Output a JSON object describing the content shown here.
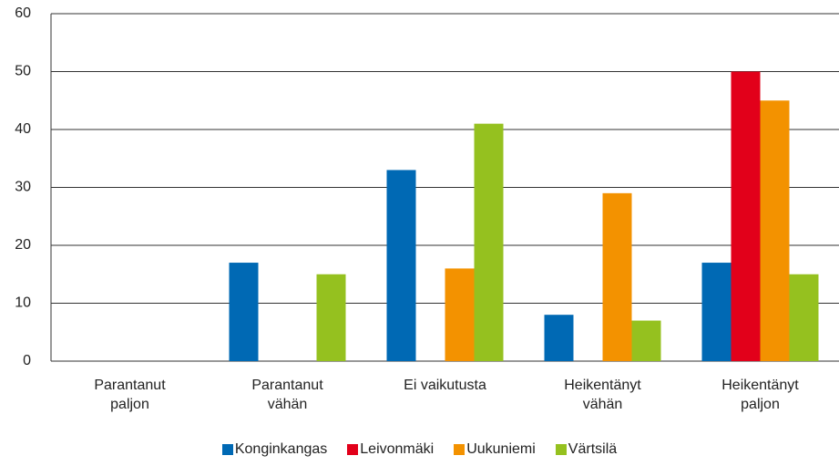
{
  "chart_data": {
    "type": "bar",
    "categories": [
      "Parantanut\npaljon",
      "Parantanut\nvähän",
      "Ei vaikutusta",
      "Heikentänyt\nvähän",
      "Heikentänyt\npaljon"
    ],
    "series": [
      {
        "name": "Konginkangas",
        "color": "#0069b4",
        "values": [
          0,
          17,
          33,
          8,
          17
        ]
      },
      {
        "name": "Leivonmäki",
        "color": "#e2001a",
        "values": [
          0,
          0,
          0,
          0,
          50
        ]
      },
      {
        "name": "Uukuniemi",
        "color": "#f39200",
        "values": [
          0,
          0,
          16,
          29,
          45
        ]
      },
      {
        "name": "Värtsilä",
        "color": "#95c11f",
        "values": [
          0,
          15,
          41,
          7,
          15
        ]
      }
    ],
    "ylim": [
      0,
      60
    ],
    "yticks": [
      0,
      10,
      20,
      30,
      40,
      50,
      60
    ],
    "grid": true,
    "legend": "bottom"
  }
}
